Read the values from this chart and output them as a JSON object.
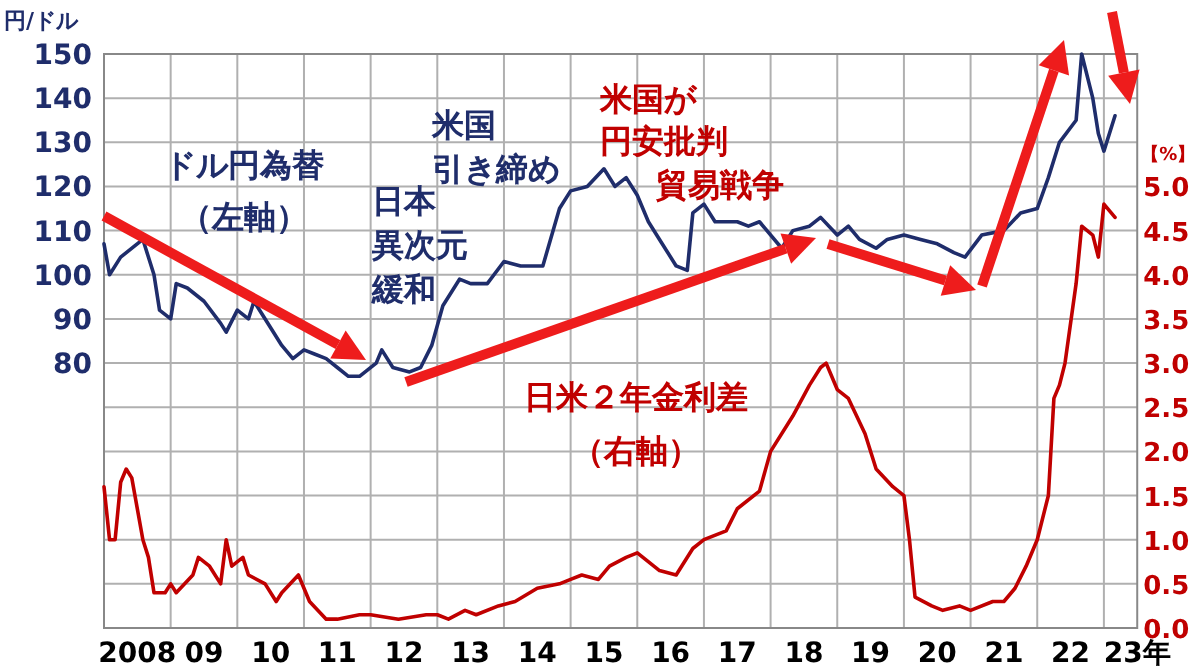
{
  "chart_data": {
    "type": "line",
    "ylabel": "円/ドル",
    "y2label": "【%】",
    "annotations": [
      "ドル円為替（左軸）",
      "日本異次元緩和",
      "米国引き締め",
      "米国が円安批判",
      "貿易戦争",
      "日米２年金利差（右軸）"
    ],
    "xlim": [
      "2008-01",
      "2023-07"
    ],
    "xticks": [
      {
        "value": "2008-07",
        "label": "2008"
      },
      {
        "value": "2009-07",
        "label": "09"
      },
      {
        "value": "2010-07",
        "label": "10"
      },
      {
        "value": "2011-07",
        "label": "11"
      },
      {
        "value": "2012-07",
        "label": "12"
      },
      {
        "value": "2013-07",
        "label": "13"
      },
      {
        "value": "2014-07",
        "label": "14"
      },
      {
        "value": "2015-07",
        "label": "15"
      },
      {
        "value": "2016-07",
        "label": "16"
      },
      {
        "value": "2017-07",
        "label": "17"
      },
      {
        "value": "2018-07",
        "label": "18"
      },
      {
        "value": "2019-07",
        "label": "19"
      },
      {
        "value": "2020-07",
        "label": "20"
      },
      {
        "value": "2021-07",
        "label": "21"
      },
      {
        "value": "2022-07",
        "label": "22"
      },
      {
        "value": "2023-07",
        "label": "23年"
      },
      {
        "value": "2009-01",
        "label": null
      },
      {
        "value": "2010-01",
        "label": null
      },
      {
        "value": "2011-01",
        "label": null
      },
      {
        "value": "2012-01",
        "label": null
      },
      {
        "value": "2013-01",
        "label": null
      },
      {
        "value": "2014-01",
        "label": null
      },
      {
        "value": "2015-01",
        "label": null
      },
      {
        "value": "2016-01",
        "label": null
      },
      {
        "value": "2017-01",
        "label": null
      },
      {
        "value": "2018-01",
        "label": null
      },
      {
        "value": "2019-01",
        "label": null
      },
      {
        "value": "2020-01",
        "label": null
      },
      {
        "value": "2021-01",
        "label": null
      },
      {
        "value": "2022-01",
        "label": null
      },
      {
        "value": "2023-01",
        "label": null
      }
    ],
    "ylim": [
      20,
      150
    ],
    "yticks": [
      {
        "value": 20,
        "label": null
      },
      {
        "value": 30,
        "label": null
      },
      {
        "value": 40,
        "label": null
      },
      {
        "value": 50,
        "label": null
      },
      {
        "value": 60,
        "label": null
      },
      {
        "value": 70,
        "label": null
      },
      80,
      90,
      100,
      110,
      120,
      130,
      140,
      150
    ],
    "y2lim": [
      0,
      6.5
    ],
    "y2ticks": [
      {
        "value": 0,
        "label": "0.0"
      },
      {
        "value": 0.5,
        "label": "0.5"
      },
      {
        "value": 1,
        "label": "1.0"
      },
      {
        "value": 1.5,
        "label": "1.5"
      },
      {
        "value": 2,
        "label": "2.0"
      },
      {
        "value": 2.5,
        "label": "2.5"
      },
      {
        "value": 3,
        "label": "3.0"
      },
      {
        "value": 3.5,
        "label": "3.5"
      },
      {
        "value": 4,
        "label": "4.0"
      },
      {
        "value": 4.5,
        "label": "4.5"
      },
      {
        "value": 5,
        "label": "5.0"
      },
      {
        "value": 5.5,
        "label": null
      },
      {
        "value": 6,
        "label": null
      }
    ],
    "grid": true,
    "series": [
      {
        "color": "#1f2d6b",
        "x": [
          "2008-01",
          "2008-02",
          "2008-04",
          "2008-08",
          "2008-10",
          "2008-11",
          "2009-01",
          "2009-02",
          "2009-04",
          "2009-07",
          "2009-10",
          "2009-11",
          "2010-01",
          "2010-03",
          "2010-04",
          "2010-07",
          "2010-09",
          "2010-11",
          "2011-01",
          "2011-03",
          "2011-05",
          "2011-07",
          "2011-09",
          "2011-11",
          "2012-02",
          "2012-03",
          "2012-05",
          "2012-08",
          "2012-10",
          "2012-12",
          "2013-02",
          "2013-05",
          "2013-07",
          "2013-10",
          "2014-01",
          "2014-04",
          "2014-08",
          "2014-11",
          "2015-01",
          "2015-04",
          "2015-07",
          "2015-09",
          "2015-11",
          "2016-01",
          "2016-03",
          "2016-05",
          "2016-08",
          "2016-10",
          "2016-11",
          "2017-01",
          "2017-03",
          "2017-07",
          "2017-09",
          "2017-11",
          "2018-03",
          "2018-05",
          "2018-08",
          "2018-10",
          "2019-01",
          "2019-03",
          "2019-05",
          "2019-08",
          "2019-10",
          "2020-01",
          "2020-04",
          "2020-07",
          "2020-10",
          "2020-12",
          "2021-03",
          "2021-07",
          "2021-10",
          "2022-01",
          "2022-03",
          "2022-05",
          "2022-08",
          "2022-09",
          "2022-11",
          "2022-12",
          "2023-01",
          "2023-03"
        ],
        "values": [
          107,
          100,
          104,
          108,
          100,
          92,
          90,
          98,
          97,
          94,
          89,
          87,
          92,
          90,
          94,
          88,
          84,
          81,
          83,
          82,
          81,
          79,
          77,
          77,
          80,
          83,
          79,
          78,
          79,
          84,
          93,
          99,
          98,
          98,
          103,
          102,
          102,
          115,
          119,
          120,
          124,
          120,
          122,
          118,
          112,
          108,
          102,
          101,
          114,
          116,
          112,
          112,
          111,
          112,
          106,
          110,
          111,
          113,
          109,
          111,
          108,
          106,
          108,
          109,
          108,
          107,
          105,
          104,
          109,
          110,
          114,
          115,
          122,
          130,
          135,
          150,
          140,
          132,
          128,
          136
        ]
      },
      {
        "color": "#c00000",
        "axis": "y2",
        "x": [
          "2008-01",
          "2008-02",
          "2008-03",
          "2008-04",
          "2008-05",
          "2008-06",
          "2008-08",
          "2008-09",
          "2008-10",
          "2008-12",
          "2009-01",
          "2009-02",
          "2009-05",
          "2009-06",
          "2009-08",
          "2009-10",
          "2009-11",
          "2009-12",
          "2010-02",
          "2010-03",
          "2010-06",
          "2010-08",
          "2010-09",
          "2010-12",
          "2011-02",
          "2011-05",
          "2011-07",
          "2011-11",
          "2012-01",
          "2012-06",
          "2012-11",
          "2013-01",
          "2013-03",
          "2013-06",
          "2013-08",
          "2013-12",
          "2014-03",
          "2014-07",
          "2014-11",
          "2015-01",
          "2015-03",
          "2015-06",
          "2015-08",
          "2015-11",
          "2016-01",
          "2016-05",
          "2016-08",
          "2016-11",
          "2017-01",
          "2017-05",
          "2017-07",
          "2017-11",
          "2018-01",
          "2018-05",
          "2018-08",
          "2018-10",
          "2018-11",
          "2019-01",
          "2019-03",
          "2019-06",
          "2019-08",
          "2019-11",
          "2020-01",
          "2020-02",
          "2020-03",
          "2020-06",
          "2020-08",
          "2020-11",
          "2021-01",
          "2021-05",
          "2021-07",
          "2021-09",
          "2021-11",
          "2022-01",
          "2022-03",
          "2022-04",
          "2022-05",
          "2022-06",
          "2022-08",
          "2022-09",
          "2022-11",
          "2022-12",
          "2023-01",
          "2023-03"
        ],
        "values": [
          1.6,
          1.0,
          1.0,
          1.65,
          1.8,
          1.7,
          1.0,
          0.8,
          0.4,
          0.4,
          0.5,
          0.4,
          0.6,
          0.8,
          0.7,
          0.5,
          1.0,
          0.7,
          0.8,
          0.6,
          0.5,
          0.3,
          0.4,
          0.6,
          0.3,
          0.1,
          0.1,
          0.15,
          0.15,
          0.1,
          0.15,
          0.15,
          0.1,
          0.2,
          0.15,
          0.25,
          0.3,
          0.45,
          0.5,
          0.55,
          0.6,
          0.55,
          0.7,
          0.8,
          0.85,
          0.65,
          0.6,
          0.9,
          1.0,
          1.1,
          1.35,
          1.55,
          2.0,
          2.4,
          2.75,
          2.95,
          3.0,
          2.7,
          2.6,
          2.2,
          1.8,
          1.6,
          1.5,
          1.0,
          0.35,
          0.25,
          0.2,
          0.25,
          0.2,
          0.3,
          0.3,
          0.45,
          0.7,
          1.0,
          1.5,
          2.6,
          2.75,
          3.0,
          3.9,
          4.55,
          4.45,
          4.2,
          4.8,
          4.65
        ]
      }
    ]
  }
}
